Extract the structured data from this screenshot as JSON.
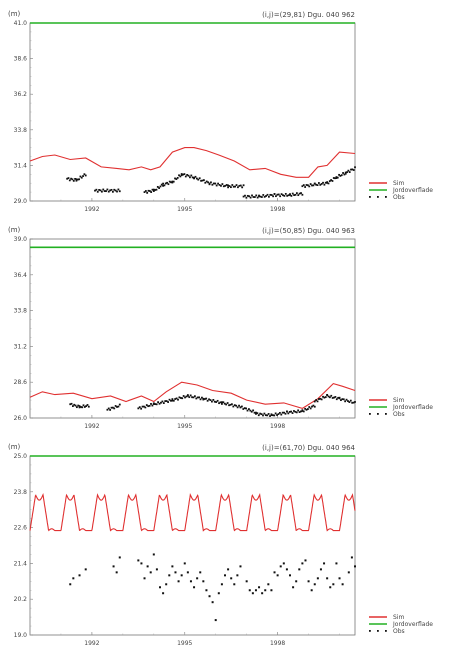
{
  "chart_data": [
    {
      "type": "line",
      "title": "(i,j)=(29,81) Dgu. 040 962",
      "ylabel": "(m)",
      "ylim": [
        29.0,
        41.0
      ],
      "yticks": [
        "29.0",
        "31.4",
        "33.8",
        "36.2",
        "38.6",
        "41.0"
      ],
      "xlim": [
        1990.0,
        2000.5
      ],
      "xticks": [
        "1992",
        "1995",
        "1998"
      ],
      "legend": [
        "Sim",
        "Jordoverflade",
        "Obs"
      ],
      "series": [
        {
          "name": "Sim",
          "color": "#e03030",
          "x": [
            1990.0,
            1990.4,
            1990.8,
            1991.3,
            1991.8,
            1992.3,
            1992.8,
            1993.2,
            1993.6,
            1993.9,
            1994.2,
            1994.6,
            1995.0,
            1995.3,
            1995.7,
            1996.1,
            1996.6,
            1997.1,
            1997.6,
            1998.1,
            1998.6,
            1999.0,
            1999.3,
            1999.6,
            2000.0,
            2000.5
          ],
          "y": [
            31.7,
            32.0,
            32.1,
            31.8,
            31.9,
            31.3,
            31.2,
            31.1,
            31.3,
            31.1,
            31.3,
            32.3,
            32.6,
            32.6,
            32.4,
            32.1,
            31.7,
            31.1,
            31.2,
            30.8,
            30.6,
            30.6,
            31.3,
            31.4,
            32.3,
            32.2
          ]
        },
        {
          "name": "Jordoverflade",
          "color": "#22b022",
          "x": [
            1990.0,
            2000.5
          ],
          "y": [
            41.0,
            41.0
          ]
        },
        {
          "name": "Obs",
          "color": "#111111",
          "marker": "dot",
          "segments": [
            {
              "x": [
                1991.2,
                1991.5,
                1991.8
              ],
              "y": [
                30.5,
                30.4,
                30.8
              ]
            },
            {
              "x": [
                1992.1,
                1992.9
              ],
              "y": [
                29.7,
                29.7
              ]
            },
            {
              "x": [
                1993.7,
                1994.0,
                1994.3,
                1994.6,
                1994.9,
                1995.3,
                1995.8,
                1996.4,
                1996.9
              ],
              "y": [
                29.6,
                29.7,
                30.1,
                30.3,
                30.8,
                30.6,
                30.2,
                30.0,
                30.0
              ]
            },
            {
              "x": [
                1996.9,
                1997.4,
                1997.9,
                1998.4,
                1998.8
              ],
              "y": [
                29.3,
                29.3,
                29.4,
                29.4,
                29.5
              ]
            },
            {
              "x": [
                1998.8,
                1999.2,
                1999.6,
                1999.9,
                2000.2,
                2000.5
              ],
              "y": [
                30.0,
                30.1,
                30.2,
                30.6,
                30.9,
                31.2
              ]
            }
          ]
        }
      ]
    },
    {
      "type": "line",
      "title": "(i,j)=(50,85) Dgu. 040 963",
      "ylabel": "(m)",
      "ylim": [
        26.0,
        39.0
      ],
      "yticks": [
        "26.0",
        "28.6",
        "31.2",
        "33.8",
        "36.4",
        "39.0"
      ],
      "xlim": [
        1990.0,
        2000.5
      ],
      "xticks": [
        "1992",
        "1995",
        "1998"
      ],
      "legend": [
        "Sim",
        "Jordoverflade",
        "Obs"
      ],
      "series": [
        {
          "name": "Sim",
          "color": "#e03030",
          "x": [
            1990.0,
            1990.4,
            1990.8,
            1991.4,
            1992.0,
            1992.6,
            1993.1,
            1993.6,
            1994.0,
            1994.4,
            1994.9,
            1995.4,
            1995.9,
            1996.5,
            1997.0,
            1997.6,
            1998.2,
            1998.8,
            1999.3,
            1999.8,
            2000.1,
            2000.5
          ],
          "y": [
            27.5,
            27.9,
            27.7,
            27.8,
            27.4,
            27.6,
            27.2,
            27.6,
            27.2,
            27.9,
            28.6,
            28.4,
            28.0,
            27.8,
            27.3,
            27.0,
            27.1,
            26.7,
            27.4,
            28.5,
            28.3,
            28.0
          ]
        },
        {
          "name": "Jordoverflade",
          "color": "#22b022",
          "x": [
            1990.0,
            2000.5
          ],
          "y": [
            38.4,
            38.4
          ]
        },
        {
          "name": "Obs",
          "color": "#111111",
          "marker": "dot",
          "segments": [
            {
              "x": [
                1991.3,
                1991.6,
                1991.9
              ],
              "y": [
                27.0,
                26.8,
                26.9
              ]
            },
            {
              "x": [
                1992.5,
                1992.9
              ],
              "y": [
                26.6,
                26.9
              ]
            },
            {
              "x": [
                1993.5,
                1994.0,
                1994.6,
                1995.1,
                1995.6,
                1996.2,
                1996.8,
                1997.3
              ],
              "y": [
                26.7,
                27.0,
                27.3,
                27.6,
                27.4,
                27.1,
                26.8,
                26.4
              ]
            },
            {
              "x": [
                1997.3,
                1997.8,
                1998.3,
                1998.8,
                1999.2
              ],
              "y": [
                26.3,
                26.2,
                26.4,
                26.5,
                26.9
              ]
            },
            {
              "x": [
                1999.2,
                1999.6,
                2000.0,
                2000.5
              ],
              "y": [
                27.2,
                27.6,
                27.4,
                27.1
              ]
            }
          ]
        }
      ]
    },
    {
      "type": "line",
      "title": "(i,j)=(61,70) Dgu. 040 964",
      "ylabel": "(m)",
      "ylim": [
        19.0,
        25.0
      ],
      "yticks": [
        "19.0",
        "20.2",
        "21.4",
        "22.6",
        "23.8",
        "25.0"
      ],
      "xlim": [
        1990.0,
        2000.5
      ],
      "xticks": [
        "1992",
        "1995",
        "1998"
      ],
      "legend": [
        "Sim",
        "Jordoverflade",
        "Obs"
      ],
      "series": [
        {
          "name": "Sim",
          "color": "#e03030",
          "pattern": "seasonal",
          "x_start": 1990.0,
          "x_end": 2000.5,
          "cycles": 10.5,
          "low": 22.5,
          "high": 23.7
        },
        {
          "name": "Jordoverflade",
          "color": "#22b022",
          "x": [
            1990.0,
            2000.5
          ],
          "y": [
            25.0,
            25.0
          ]
        },
        {
          "name": "Obs",
          "color": "#111111",
          "marker": "dot",
          "scatter": [
            [
              1991.3,
              20.7
            ],
            [
              1991.4,
              20.9
            ],
            [
              1991.6,
              21.0
            ],
            [
              1991.8,
              21.2
            ],
            [
              1992.7,
              21.3
            ],
            [
              1992.8,
              21.1
            ],
            [
              1992.9,
              21.6
            ],
            [
              1993.5,
              21.5
            ],
            [
              1993.6,
              21.4
            ],
            [
              1993.7,
              20.9
            ],
            [
              1993.8,
              21.3
            ],
            [
              1993.9,
              21.1
            ],
            [
              1994.0,
              21.7
            ],
            [
              1994.1,
              21.2
            ],
            [
              1994.2,
              20.6
            ],
            [
              1994.3,
              20.4
            ],
            [
              1994.4,
              20.7
            ],
            [
              1994.5,
              21.0
            ],
            [
              1994.6,
              21.3
            ],
            [
              1994.7,
              21.1
            ],
            [
              1994.8,
              20.8
            ],
            [
              1994.9,
              21.0
            ],
            [
              1995.0,
              21.4
            ],
            [
              1995.1,
              21.1
            ],
            [
              1995.2,
              20.8
            ],
            [
              1995.3,
              20.6
            ],
            [
              1995.4,
              20.9
            ],
            [
              1995.5,
              21.1
            ],
            [
              1995.6,
              20.8
            ],
            [
              1995.7,
              20.5
            ],
            [
              1995.8,
              20.3
            ],
            [
              1995.9,
              20.1
            ],
            [
              1996.0,
              19.5
            ],
            [
              1996.1,
              20.4
            ],
            [
              1996.2,
              20.7
            ],
            [
              1996.3,
              21.0
            ],
            [
              1996.4,
              21.2
            ],
            [
              1996.5,
              20.9
            ],
            [
              1996.6,
              20.7
            ],
            [
              1996.7,
              21.0
            ],
            [
              1996.8,
              21.3
            ],
            [
              1997.0,
              20.8
            ],
            [
              1997.1,
              20.5
            ],
            [
              1997.2,
              20.4
            ],
            [
              1997.3,
              20.5
            ],
            [
              1997.4,
              20.6
            ],
            [
              1997.5,
              20.4
            ],
            [
              1997.6,
              20.5
            ],
            [
              1997.7,
              20.7
            ],
            [
              1997.8,
              20.5
            ],
            [
              1997.9,
              21.1
            ],
            [
              1998.0,
              21.0
            ],
            [
              1998.1,
              21.3
            ],
            [
              1998.2,
              21.4
            ],
            [
              1998.3,
              21.2
            ],
            [
              1998.4,
              21.0
            ],
            [
              1998.5,
              20.6
            ],
            [
              1998.6,
              20.8
            ],
            [
              1998.7,
              21.2
            ],
            [
              1998.8,
              21.4
            ],
            [
              1998.9,
              21.5
            ],
            [
              1999.0,
              20.8
            ],
            [
              1999.1,
              20.5
            ],
            [
              1999.2,
              20.7
            ],
            [
              1999.3,
              20.9
            ],
            [
              1999.4,
              21.2
            ],
            [
              1999.5,
              21.4
            ],
            [
              1999.6,
              20.9
            ],
            [
              1999.7,
              20.6
            ],
            [
              1999.8,
              20.7
            ],
            [
              1999.9,
              21.4
            ],
            [
              2000.0,
              20.9
            ],
            [
              2000.1,
              20.7
            ],
            [
              2000.3,
              21.1
            ],
            [
              2000.4,
              21.6
            ],
            [
              2000.5,
              21.3
            ]
          ]
        }
      ]
    }
  ]
}
